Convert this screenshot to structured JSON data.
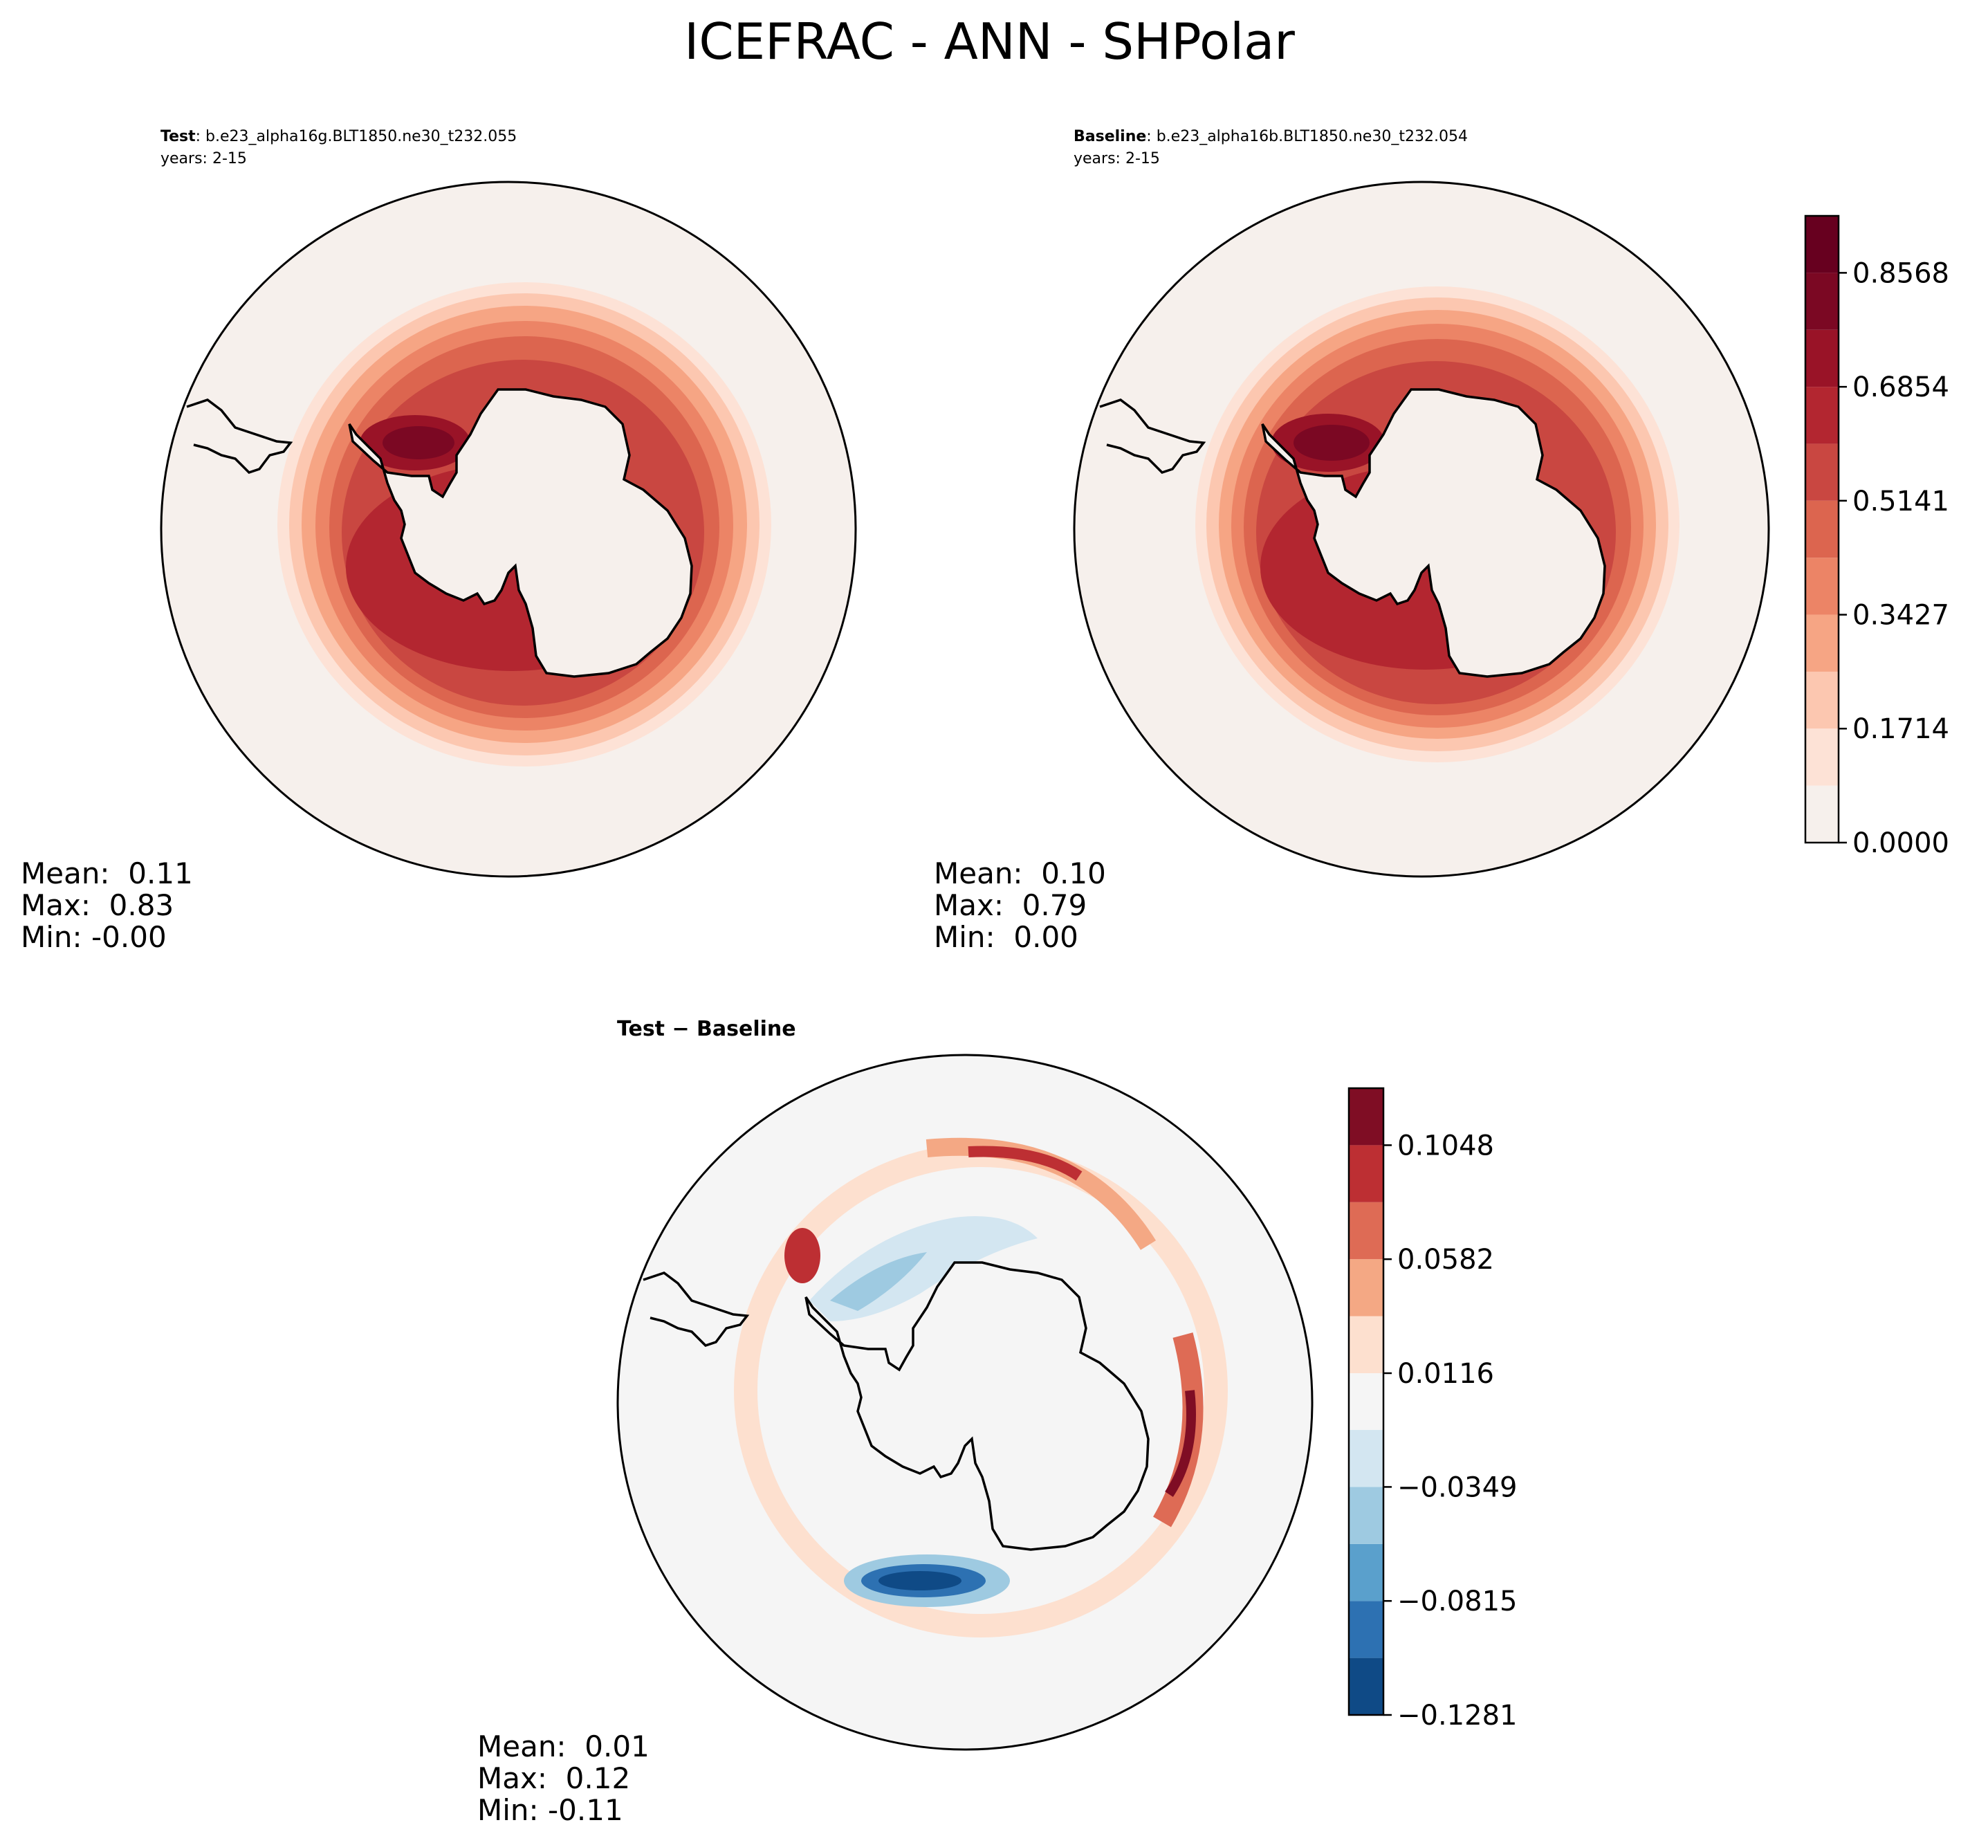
{
  "title": "ICEFRAC - ANN - SHPolar",
  "panels": [
    {
      "id": "test",
      "label_bold": "Test",
      "case": ": b.e23_alpha16g.BLT1850.ne30_t232.055",
      "years": "years: 2-15",
      "stats": {
        "mean": "Mean:  0.11",
        "max": "Max:  0.83",
        "min": "Min: -0.00"
      }
    },
    {
      "id": "baseline",
      "label_bold": "Baseline",
      "case": ": b.e23_alpha16b.BLT1850.ne30_t232.054",
      "years": "years: 2-15",
      "stats": {
        "mean": "Mean:  0.10",
        "max": "Max:  0.79",
        "min": "Min:  0.00"
      }
    },
    {
      "id": "diff",
      "label": "Test − Baseline",
      "stats": {
        "mean": "Mean:  0.01",
        "max": "Max:  0.12",
        "min": "Min: -0.11"
      }
    }
  ],
  "chart_data": [
    {
      "type": "heatmap",
      "projection": "south-polar-stereographic",
      "title": "Test",
      "variable": "ICEFRAC",
      "colormap": "Reds",
      "levels": [
        0.0,
        0.0857,
        0.1714,
        0.257,
        0.3427,
        0.4284,
        0.5141,
        0.5998,
        0.6854,
        0.7711,
        0.8568,
        0.9425
      ],
      "colors": [
        "#f6f0ec",
        "#fde2d6",
        "#fcc7b0",
        "#f6a584",
        "#ec8466",
        "#dc654f",
        "#c94741",
        "#b32630",
        "#991327",
        "#7b0823",
        "#67001f"
      ],
      "colorbar_ticks": [
        "0.0000",
        "0.1714",
        "0.3427",
        "0.5141",
        "0.6854",
        "0.8568"
      ],
      "mean": 0.11,
      "max": 0.83,
      "min": -0.0
    },
    {
      "type": "heatmap",
      "projection": "south-polar-stereographic",
      "title": "Baseline",
      "variable": "ICEFRAC",
      "colormap": "Reds",
      "levels": [
        0.0,
        0.0857,
        0.1714,
        0.257,
        0.3427,
        0.4284,
        0.5141,
        0.5998,
        0.6854,
        0.7711,
        0.8568,
        0.9425
      ],
      "colors": [
        "#f6f0ec",
        "#fde2d6",
        "#fcc7b0",
        "#f6a584",
        "#ec8466",
        "#dc654f",
        "#c94741",
        "#b32630",
        "#991327",
        "#7b0823",
        "#67001f"
      ],
      "colorbar_ticks": [
        "0.0000",
        "0.1714",
        "0.3427",
        "0.5141",
        "0.6854",
        "0.8568"
      ],
      "mean": 0.1,
      "max": 0.79,
      "min": 0.0
    },
    {
      "type": "heatmap",
      "projection": "south-polar-stereographic",
      "title": "Test − Baseline",
      "variable": "ICEFRAC difference",
      "colormap": "RdBu_r",
      "levels": [
        -0.1281,
        -0.1048,
        -0.0815,
        -0.0582,
        -0.0349,
        -0.0116,
        0.0116,
        0.0349,
        0.0582,
        0.0815,
        0.1048,
        0.1281
      ],
      "colors": [
        "#0f4a86",
        "#2d71b2",
        "#5aa0cc",
        "#9ecae1",
        "#d3e6f1",
        "#f5f5f5",
        "#fde0cf",
        "#f4a884",
        "#de6b55",
        "#bd2f33",
        "#7f0d24"
      ],
      "colorbar_ticks": [
        "−0.1281",
        "−0.0815",
        "−0.0349",
        "0.0116",
        "0.0582",
        "0.1048"
      ],
      "mean": 0.01,
      "max": 0.12,
      "min": -0.11
    }
  ]
}
